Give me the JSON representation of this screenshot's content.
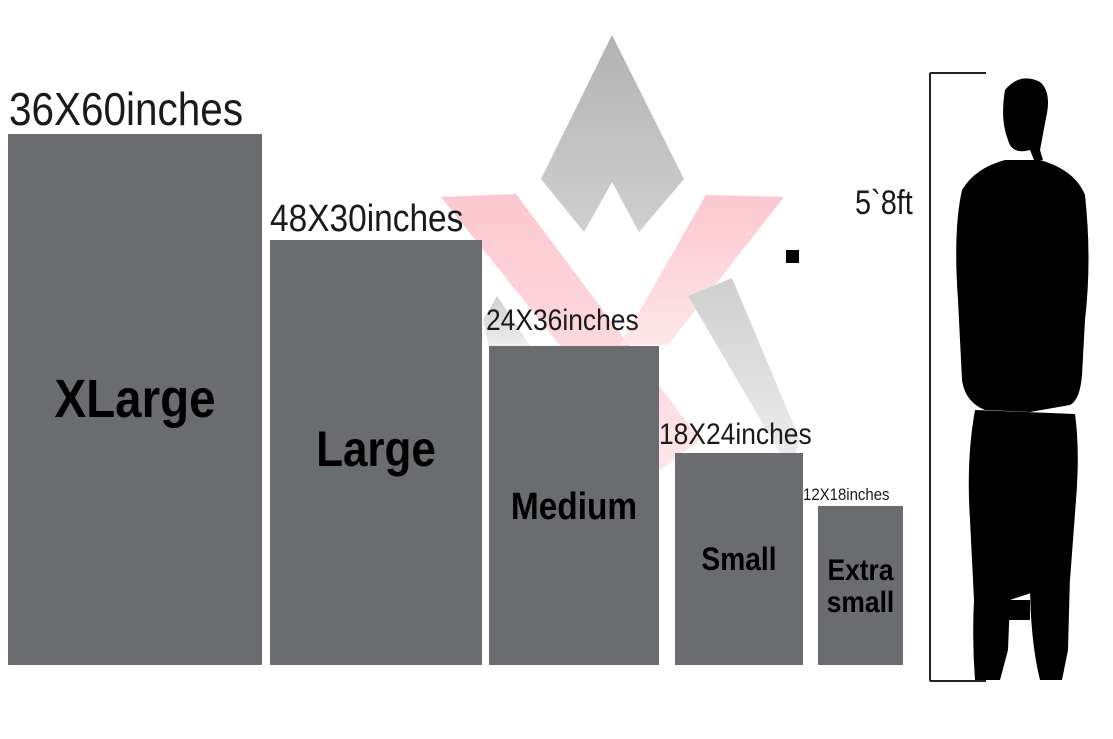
{
  "sizes": [
    {
      "name": "XLarge",
      "dimensions": "36X60inches"
    },
    {
      "name": "Large",
      "dimensions": "48X30inches"
    },
    {
      "name": "Medium",
      "dimensions": "24X36inches"
    },
    {
      "name": "Small",
      "dimensions": "18X24inches"
    },
    {
      "name_line1": "Extra",
      "name_line2": "small",
      "dimensions": "12X18inches"
    }
  ],
  "person_height": "5`8ft",
  "colors": {
    "box": "#6b6c70",
    "watermark_gray": "#bdbdbd",
    "watermark_pink": "#fdd0d6",
    "silhouette": "#000000"
  }
}
